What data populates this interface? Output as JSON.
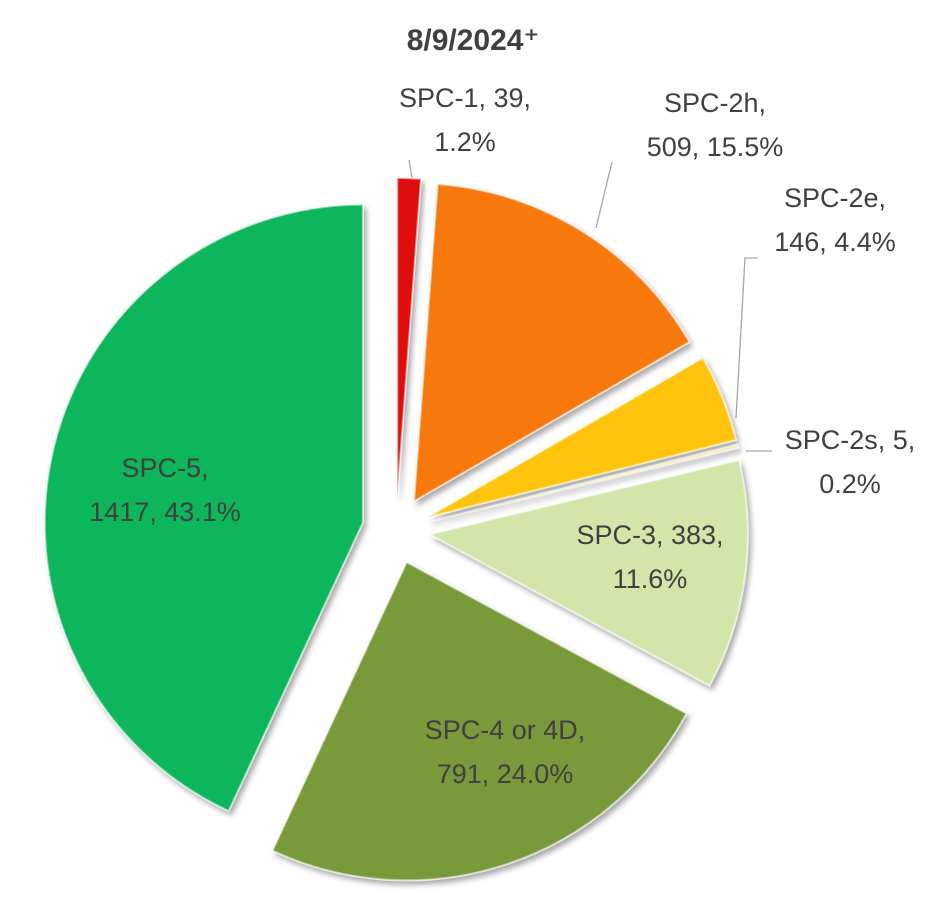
{
  "chart_data": {
    "type": "pie",
    "title": "8/9/2024⁺",
    "values": [
      39,
      509,
      146,
      5,
      383,
      791,
      1417
    ],
    "value_labels": [
      [
        "SPC-1, 39,",
        "1.2%"
      ],
      [
        "SPC-2h,",
        "509, 15.5%"
      ],
      [
        "SPC-2e,",
        "146, 4.4%"
      ],
      [
        "SPC-2s, 5,",
        "0.2%"
      ],
      [
        "SPC-3, 383,",
        "11.6%"
      ],
      [
        "SPC-4 or 4D,",
        "791, 24.0%"
      ],
      [
        "SPC-5,",
        "1417, 43.1%"
      ]
    ],
    "colors": [
      "#e00a0a",
      "#f7780c",
      "#ffc40a",
      "#f3e7a6",
      "#d3e6a9",
      "#789a3a",
      "#0db65a"
    ]
  }
}
